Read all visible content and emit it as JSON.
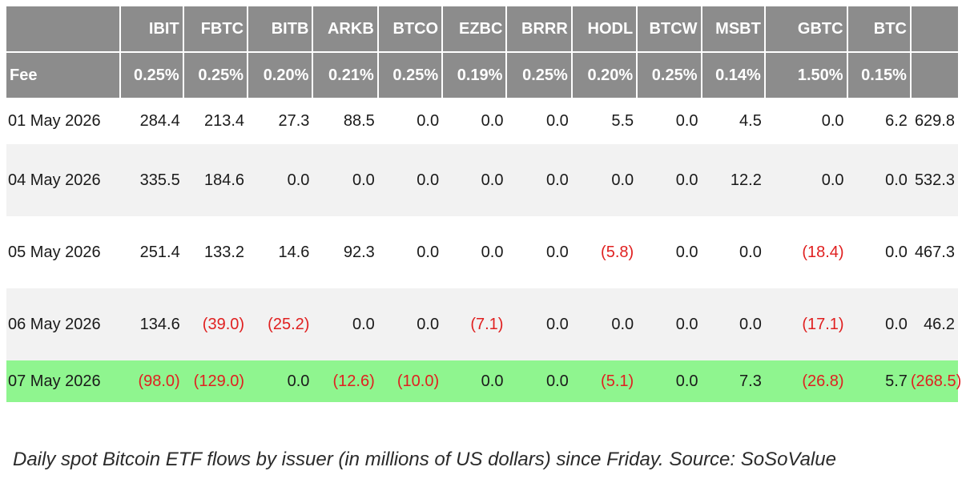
{
  "chart_data": {
    "type": "table",
    "title": "",
    "fee_label": "Fee",
    "columns": [
      "IBIT",
      "FBTC",
      "BITB",
      "ARKB",
      "BTCO",
      "EZBC",
      "BRRR",
      "HODL",
      "BTCW",
      "MSBT",
      "GBTC",
      "BTC",
      ""
    ],
    "fees": [
      "0.25%",
      "0.25%",
      "0.20%",
      "0.21%",
      "0.25%",
      "0.19%",
      "0.25%",
      "0.20%",
      "0.25%",
      "0.14%",
      "1.50%",
      "0.15%",
      ""
    ],
    "rows": [
      {
        "date": "01 May 2026",
        "values": [
          "284.4",
          "213.4",
          "27.3",
          "88.5",
          "0.0",
          "0.0",
          "0.0",
          "5.5",
          "0.0",
          "4.5",
          "0.0",
          "6.2",
          "629.8"
        ]
      },
      {
        "date": "04 May 2026",
        "values": [
          "335.5",
          "184.6",
          "0.0",
          "0.0",
          "0.0",
          "0.0",
          "0.0",
          "0.0",
          "0.0",
          "12.2",
          "0.0",
          "0.0",
          "532.3"
        ]
      },
      {
        "date": "05 May 2026",
        "values": [
          "251.4",
          "133.2",
          "14.6",
          "92.3",
          "0.0",
          "0.0",
          "0.0",
          "(5.8)",
          "0.0",
          "0.0",
          "(18.4)",
          "0.0",
          "467.3"
        ]
      },
      {
        "date": "06 May 2026",
        "values": [
          "134.6",
          "(39.0)",
          "(25.2)",
          "0.0",
          "0.0",
          "(7.1)",
          "0.0",
          "0.0",
          "0.0",
          "0.0",
          "(17.1)",
          "0.0",
          "46.2"
        ]
      },
      {
        "date": "07 May 2026",
        "values": [
          "(98.0)",
          "(129.0)",
          "0.0",
          "(12.6)",
          "(10.0)",
          "0.0",
          "0.0",
          "(5.1)",
          "0.0",
          "7.3",
          "(26.8)",
          "5.7",
          "(268.5)"
        ]
      }
    ],
    "highlight_row": 4,
    "colors": {
      "header_bg": "#8c8c8c",
      "header_text": "#ffffff",
      "alt_row_bg": "#f2f2f2",
      "highlight_bg": "#8ff58f",
      "negative_text": "#e02020"
    }
  },
  "caption": "Daily spot Bitcoin ETF flows by issuer (in millions of US dollars) since Friday. Source: SoSoValue"
}
